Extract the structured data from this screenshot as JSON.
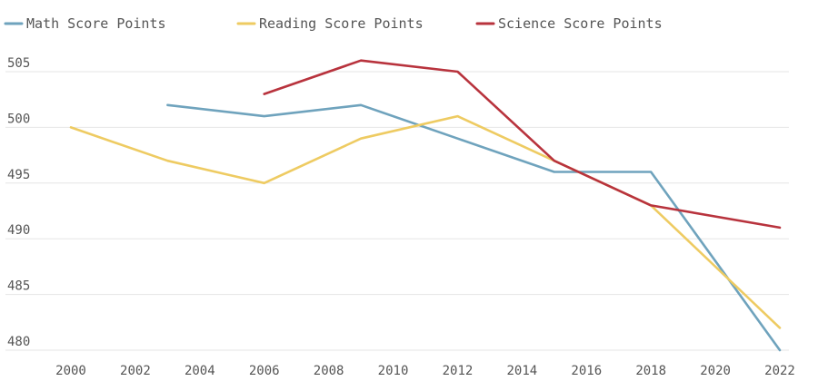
{
  "chart_data": {
    "type": "line",
    "title": "",
    "xlabel": "",
    "ylabel": "",
    "xlim": [
      2000,
      2022
    ],
    "ylim": [
      480,
      505
    ],
    "x_ticks": [
      "2000",
      "2002",
      "2004",
      "2006",
      "2008",
      "2010",
      "2012",
      "2014",
      "2016",
      "2018",
      "2020",
      "2022"
    ],
    "y_ticks": [
      "480",
      "485",
      "490",
      "495",
      "500",
      "505"
    ],
    "grid": "horizontal",
    "legend_position": "top-left",
    "series": [
      {
        "name": "Math Score Points",
        "color": "#6fa3bd",
        "x": [
          2003,
          2006,
          2009,
          2012,
          2015,
          2018,
          2022
        ],
        "y": [
          502,
          501,
          502,
          499,
          496,
          496,
          480
        ]
      },
      {
        "name": "Reading Score Points",
        "color": "#eecb62",
        "x": [
          2000,
          2003,
          2006,
          2009,
          2012,
          2015,
          2018,
          2022
        ],
        "y": [
          500,
          497,
          495,
          499,
          501,
          497,
          493,
          482
        ]
      },
      {
        "name": "Science Score Points",
        "color": "#b8333d",
        "x": [
          2006,
          2009,
          2012,
          2015,
          2018,
          2022
        ],
        "y": [
          503,
          506,
          505,
          497,
          493,
          491
        ]
      }
    ]
  }
}
